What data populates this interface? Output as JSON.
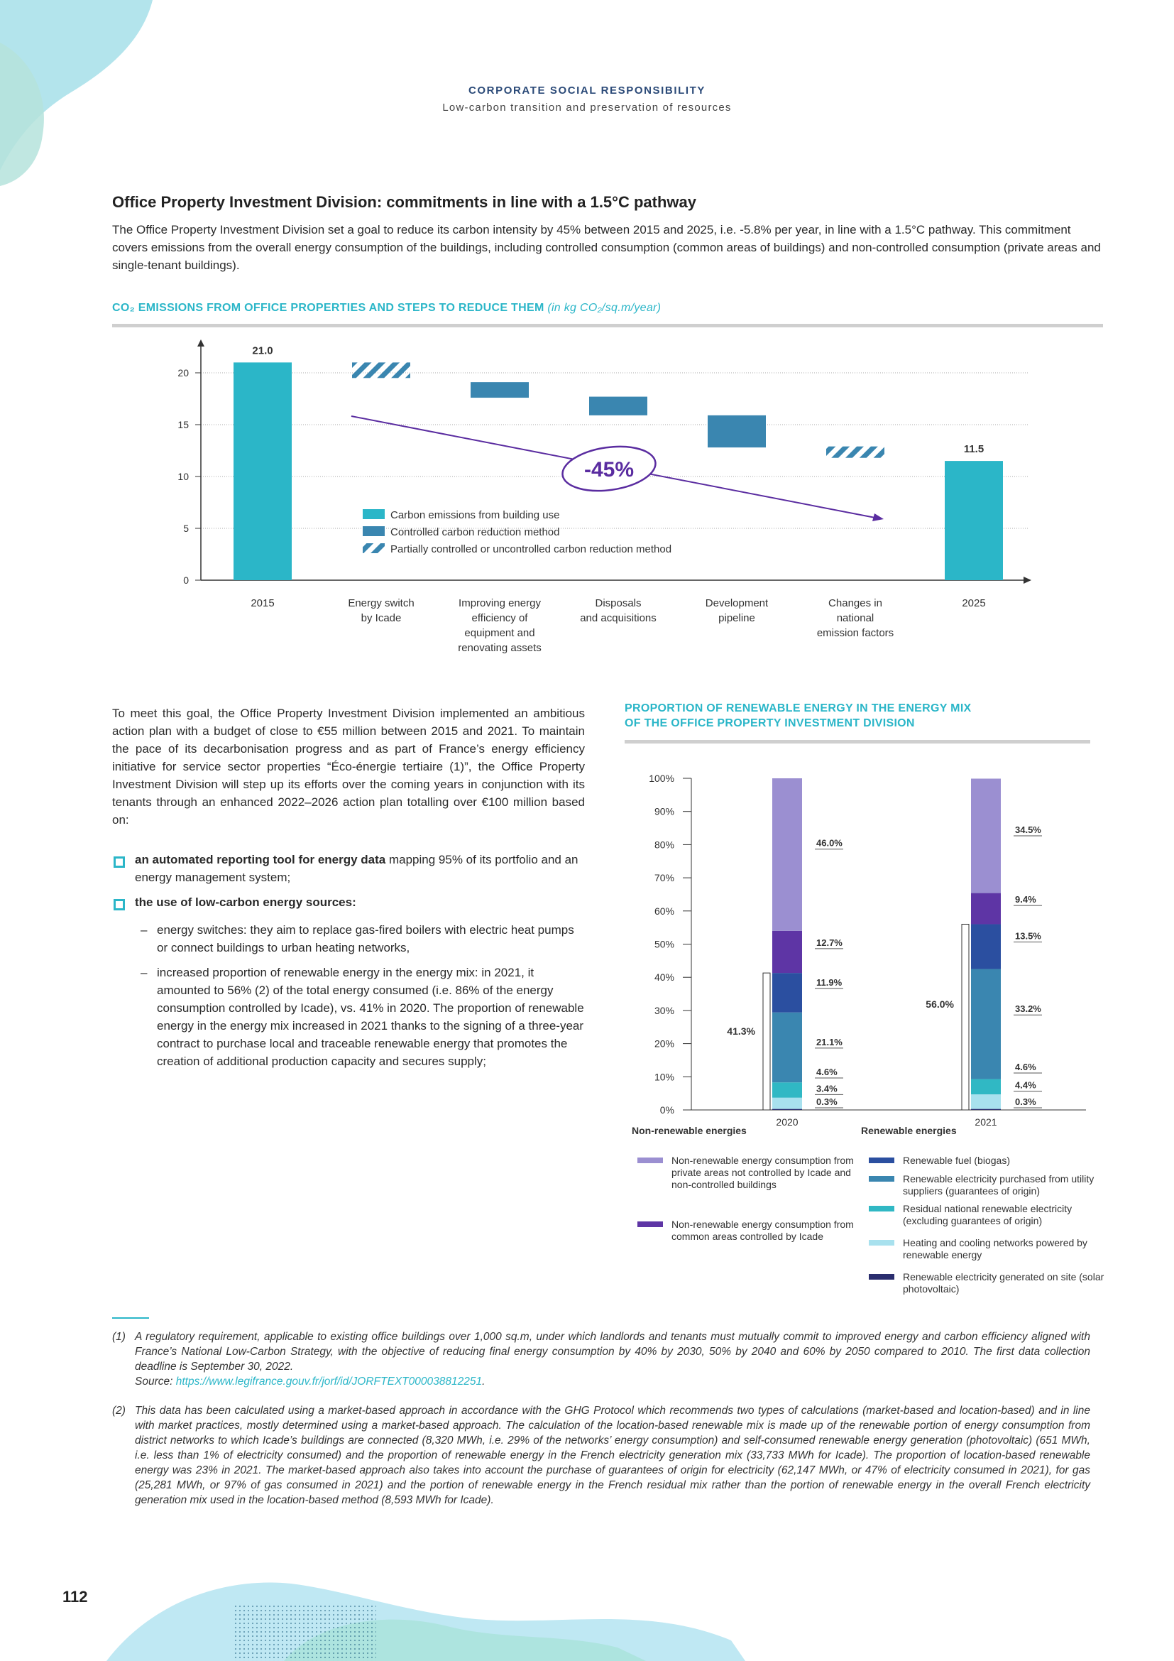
{
  "header": {
    "title": "CORPORATE SOCIAL RESPONSIBILITY",
    "subtitle": "Low-carbon transition and preservation of resources"
  },
  "section": {
    "title": "Office Property Investment Division: commitments in line with a 1.5°C pathway",
    "intro": "The Office Property Investment Division set a goal to reduce its carbon intensity by 45% between 2015 and 2025, i.e. -5.8% per year, in line with a 1.5°C pathway. This commitment covers emissions from the overall energy consumption of the buildings, including controlled consumption (common areas of buildings) and non-controlled consumption (private areas and single-tenant buildings)."
  },
  "chart1": {
    "title_main": "CO₂ EMISSIONS FROM OFFICE PROPERTIES AND STEPS TO REDUCE THEM",
    "title_unit": "(in kg CO₂/sq.m/year)",
    "reduction_label": "-45%",
    "legend": [
      "Carbon emissions from building use",
      "Controlled carbon reduction method",
      "Partially controlled or uncontrolled carbon reduction method"
    ]
  },
  "body": {
    "para1": "To meet this goal, the Office Property Investment Division implemented an ambitious action plan with a budget of close to €55 million between 2015 and 2021. To maintain the pace of its decarbonisation progress and as part of France’s energy efficiency initiative for service sector properties “Éco-énergie tertiaire (1)”, the Office Property Investment Division will step up its efforts over the coming years in conjunction with its tenants through an enhanced 2022–2026 action plan totalling over €100 million based on:",
    "bullet1_bold": "an automated reporting tool for energy data",
    "bullet1_rest": " mapping 95% of its portfolio and an energy management system;",
    "bullet2_bold": "the use of low-carbon energy sources:",
    "dash1": "energy switches: they aim to replace gas-fired boilers with electric heat pumps or connect buildings to urban heating networks,",
    "dash2": "increased proportion of renewable energy in the energy mix: in 2021, it amounted to 56% (2) of the total energy consumed (i.e. 86% of the energy consumption controlled by Icade), vs. 41% in 2020. The proportion of renewable energy in the energy mix increased in 2021 thanks to the signing of a three-year contract to purchase local and traceable renewable energy that promotes the creation of additional production capacity and secures supply;"
  },
  "chart2": {
    "title_line1": "PROPORTION OF RENEWABLE ENERGY IN THE ENERGY MIX",
    "title_line2": "OF THE OFFICE PROPERTY INVESTMENT DIVISION",
    "legend_nonrenew_title": "Non-renewable energies",
    "legend_renew_title": "Renewable energies"
  },
  "chart_data": [
    {
      "type": "bar",
      "title": "CO₂ EMISSIONS FROM OFFICE PROPERTIES AND STEPS TO REDUCE THEM",
      "unit": "(in kg CO₂/sq.m/year)",
      "categories": [
        "2015",
        "Energy switch\nby Icade",
        "Improving energy\nefficiency of\nequipment and\nrenovating assets",
        "Disposals\nand acquisitions",
        "Development\npipeline",
        "Changes in\nnational\nemission factors",
        "2025"
      ],
      "bars": [
        {
          "category": "2015",
          "bottom": 0,
          "top": 21.0,
          "kind": "emissions",
          "label": "21.0"
        },
        {
          "category": "Energy switch by Icade",
          "bottom": 19.5,
          "top": 21.0,
          "kind": "partial"
        },
        {
          "category": "Improving energy efficiency",
          "bottom": 17.6,
          "top": 19.1,
          "kind": "controlled"
        },
        {
          "category": "Disposals and acquisitions",
          "bottom": 15.9,
          "top": 17.7,
          "kind": "controlled"
        },
        {
          "category": "Development pipeline",
          "bottom": 12.8,
          "top": 15.9,
          "kind": "controlled"
        },
        {
          "category": "Changes in national emission factors",
          "bottom": 11.8,
          "top": 12.9,
          "kind": "partial"
        },
        {
          "category": "2025",
          "bottom": 0,
          "top": 11.5,
          "kind": "emissions",
          "label": "11.5"
        }
      ],
      "yticks": [
        "0",
        "5",
        "10",
        "15",
        "20"
      ],
      "ylim": [
        0,
        22
      ],
      "colors": {
        "emissions": "#2bb6c8",
        "controlled": "#3a86b0",
        "partial": "#3a86b0"
      }
    },
    {
      "type": "bar",
      "stacked": true,
      "categories": [
        "2020",
        "2021"
      ],
      "yticks": [
        "0%",
        "10%",
        "20%",
        "30%",
        "40%",
        "50%",
        "60%",
        "70%",
        "80%",
        "90%",
        "100%"
      ],
      "series": [
        {
          "name": "Renewable electricity generated on site (solar photovoltaic)",
          "group": "renewable",
          "color": "#2a2d6e",
          "values": [
            0.3,
            0.3
          ]
        },
        {
          "name": "Heating and cooling networks powered by renewable energy",
          "group": "renewable",
          "color": "#a8e1ee",
          "values": [
            3.4,
            4.4
          ]
        },
        {
          "name": "Residual national renewable electricity (excluding guarantees of origin)",
          "group": "renewable",
          "color": "#30b8c4",
          "values": [
            4.6,
            4.6
          ]
        },
        {
          "name": "Renewable electricity purchased from utility suppliers (guarantees of origin)",
          "group": "renewable",
          "color": "#3a86b0",
          "values": [
            21.1,
            33.2
          ]
        },
        {
          "name": "Renewable fuel (biogas)",
          "group": "renewable",
          "color": "#2b4fa0",
          "values": [
            11.9,
            13.5
          ]
        },
        {
          "name": "Non-renewable energy consumption from common areas controlled by Icade",
          "group": "non-renewable",
          "color": "#5e35a5",
          "values": [
            12.7,
            9.4
          ]
        },
        {
          "name": "Non-renewable energy consumption from private areas not controlled by Icade and non-controlled buildings",
          "group": "non-renewable",
          "color": "#9b8fd1",
          "values": [
            46.0,
            34.5
          ]
        }
      ],
      "value_labels": {
        "2020": [
          "0.3%",
          "3.4%",
          "4.6%",
          "21.1%",
          "11.9%",
          "12.7%",
          "46.0%"
        ],
        "2021": [
          "0.3%",
          "4.4%",
          "4.6%",
          "33.2%",
          "13.5%",
          "9.4%",
          "34.5%"
        ]
      },
      "renewable_total": {
        "2020": "41.3%",
        "2021": "56.0%"
      }
    }
  ],
  "footnotes": {
    "fn1_num": "(1)",
    "fn1_text": "A regulatory requirement, applicable to existing office buildings over 1,000 sq.m, under which landlords and tenants must mutually commit to improved energy and carbon efficiency aligned with France’s National Low-Carbon Strategy, with the objective of reducing final energy consumption by 40% by 2030, 50% by 2040 and 60% by 2050 compared to 2010. The first data collection deadline is September 30, 2022.",
    "fn1_source_label": "Source: ",
    "fn1_source_link": "https://www.legifrance.gouv.fr/jorf/id/JORFTEXT000038812251",
    "fn2_num": "(2)",
    "fn2_text": "This data has been calculated using a market-based approach in accordance with the GHG Protocol which recommends two types of calculations (market-based and location-based) and in line with market practices, mostly determined using a market-based approach. The calculation of the location-based renewable mix is made up of the renewable portion of energy consumption from district networks to which Icade’s buildings are connected (8,320 MWh, i.e. 29% of the networks’ energy consumption) and self-consumed renewable energy generation (photovoltaic) (651 MWh, i.e. less than 1% of electricity consumed) and the proportion of renewable energy in the French electricity generation mix (33,733 MWh for Icade). The proportion of location-based renewable energy was 23% in 2021. The market-based approach also takes into account the purchase of guarantees of origin for electricity (62,147 MWh, or 47% of electricity consumed in 2021), for gas (25,281 MWh, or 97% of gas consumed in 2021) and the portion of renewable energy in the French residual mix rather than the portion of renewable energy in the overall French electricity generation mix used in the location-based method (8,593 MWh for Icade)."
  },
  "page_number": "112"
}
